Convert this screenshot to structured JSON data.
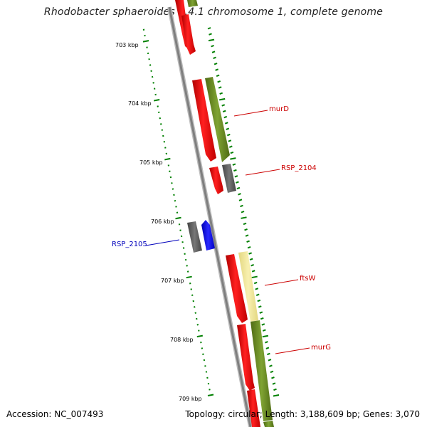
{
  "title": "Rhodobacter sphaeroides 2.4.1 chromosome 1, complete genome",
  "footer": {
    "accession": "Accession: NC_007493",
    "topology": "Topology: circular; Length: 3,188,609 bp; Genes: 3,070"
  },
  "ticks": [
    {
      "label": "703 kbp"
    },
    {
      "label": "704 kbp"
    },
    {
      "label": "705 kbp"
    },
    {
      "label": "706 kbp"
    },
    {
      "label": "707 kbp"
    },
    {
      "label": "708 kbp"
    },
    {
      "label": "709 kbp"
    }
  ],
  "labels": [
    {
      "name": "murD",
      "color": "#cc0000"
    },
    {
      "name": "RSP_2104",
      "color": "#cc0000"
    },
    {
      "name": "RSP_2105",
      "color": "#0000bb"
    },
    {
      "name": "ftsW",
      "color": "#cc0000"
    },
    {
      "name": "murG",
      "color": "#cc0000"
    }
  ],
  "colors": {
    "cds_red": "#ff0000",
    "cds_olive": "#6b8e23",
    "cds_gray": "#666666",
    "cds_blue": "#0000ff",
    "cds_yellow": "#f0e68c",
    "backbone": "#808080",
    "tick_green": "#008000"
  }
}
